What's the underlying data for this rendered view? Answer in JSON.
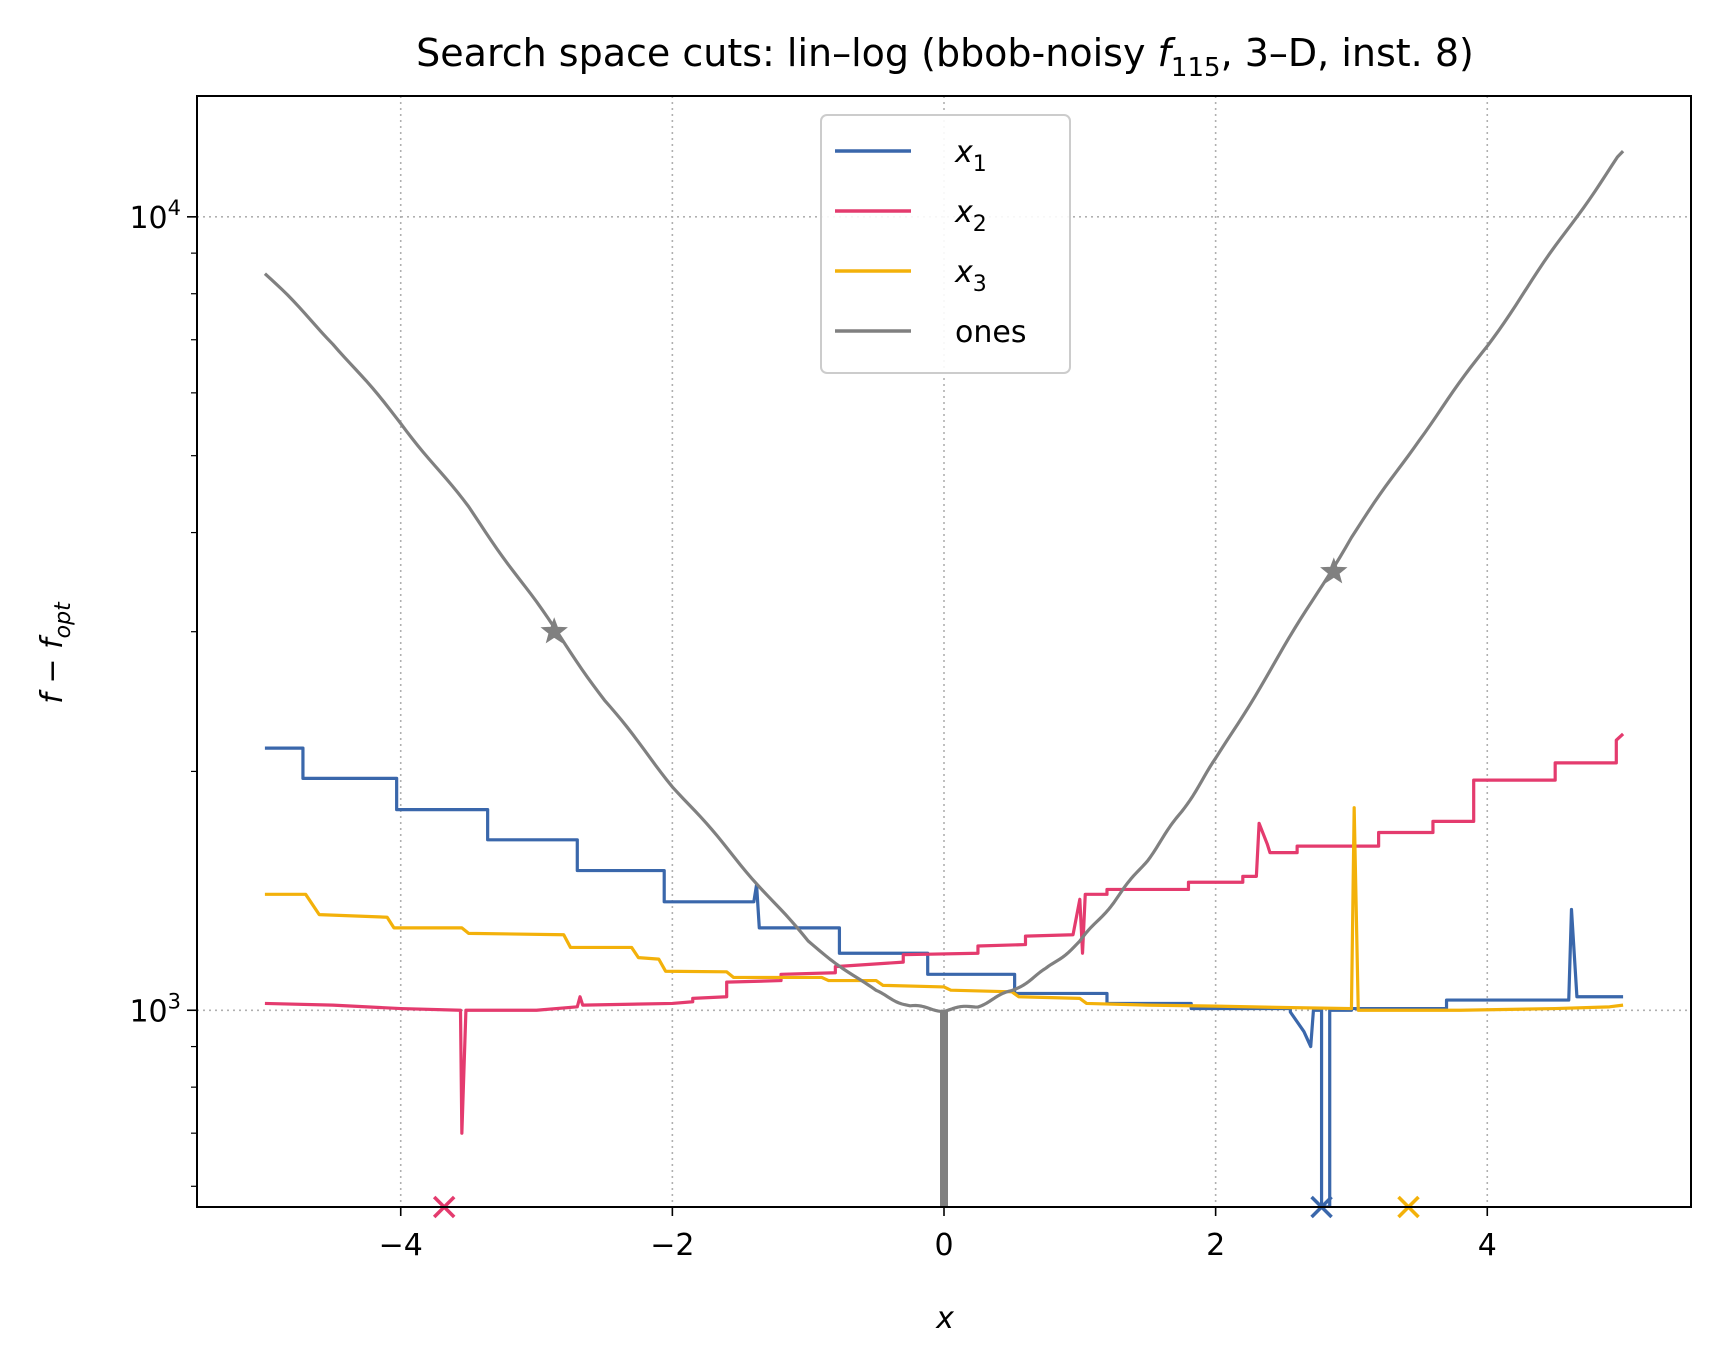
{
  "chart_data": {
    "type": "line",
    "title_main": "Search space cuts: lin–log (bbob-noisy ",
    "title_fn": "f",
    "title_sub": "115",
    "title_rest": ", 3–D, inst. 8)",
    "xlabel": "x",
    "ylabel_base": "f",
    "ylabel_mid": " − ",
    "ylabel_f": "f",
    "ylabel_sub": "opt",
    "xscale": "linear",
    "yscale": "log",
    "xlim": [
      -5.5,
      5.5
    ],
    "ylim": [
      565,
      14200
    ],
    "grid": true,
    "legend_position": "top-center",
    "x_ticks": [
      {
        "value": -4,
        "label": "−4"
      },
      {
        "value": -2,
        "label": "−2"
      },
      {
        "value": 0,
        "label": "0"
      },
      {
        "value": 2,
        "label": "2"
      },
      {
        "value": 4,
        "label": "4"
      }
    ],
    "y_ticks": [
      {
        "value": 1000,
        "base": "10",
        "exp": "3"
      },
      {
        "value": 10000,
        "base": "10",
        "exp": "4"
      }
    ],
    "series": [
      {
        "name": "x",
        "name_sub": "1",
        "color": "#3a67ab",
        "points": [
          [
            -5,
            2140
          ],
          [
            -4.72,
            2140
          ],
          [
            -4.72,
            1960
          ],
          [
            -4.03,
            1960
          ],
          [
            -4.03,
            1790
          ],
          [
            -3.36,
            1790
          ],
          [
            -3.36,
            1640
          ],
          [
            -2.7,
            1640
          ],
          [
            -2.7,
            1500
          ],
          [
            -2.06,
            1500
          ],
          [
            -2.06,
            1370
          ],
          [
            -1.4,
            1370
          ],
          [
            -1.38,
            1440
          ],
          [
            -1.36,
            1270
          ],
          [
            -0.77,
            1270
          ],
          [
            -0.77,
            1180
          ],
          [
            -0.12,
            1180
          ],
          [
            -0.12,
            1110
          ],
          [
            0.52,
            1110
          ],
          [
            0.52,
            1050
          ],
          [
            1.2,
            1050
          ],
          [
            1.2,
            1020
          ],
          [
            1.82,
            1020
          ],
          [
            1.82,
            1005
          ],
          [
            2.55,
            1005
          ],
          [
            2.55,
            995
          ],
          [
            2.65,
            940
          ],
          [
            2.7,
            900
          ],
          [
            2.72,
            1000
          ],
          [
            2.78,
            1000
          ],
          [
            2.78,
            565
          ],
          [
            2.84,
            565
          ],
          [
            2.84,
            1000
          ],
          [
            3.0,
            1000
          ],
          [
            3.0,
            1005
          ],
          [
            3.7,
            1005
          ],
          [
            3.7,
            1030
          ],
          [
            4.45,
            1030
          ],
          [
            4.6,
            1030
          ],
          [
            4.62,
            1340
          ],
          [
            4.66,
            1040
          ],
          [
            5.0,
            1040
          ]
        ]
      },
      {
        "name": "x",
        "name_sub": "2",
        "color": "#e43b6e",
        "points": [
          [
            -5,
            1020
          ],
          [
            -4.5,
            1015
          ],
          [
            -4.0,
            1005
          ],
          [
            -3.56,
            1000
          ],
          [
            -3.55,
            700
          ],
          [
            -3.52,
            1000
          ],
          [
            -3.0,
            1000
          ],
          [
            -2.7,
            1010
          ],
          [
            -2.68,
            1040
          ],
          [
            -2.66,
            1015
          ],
          [
            -2.0,
            1020
          ],
          [
            -1.85,
            1025
          ],
          [
            -1.85,
            1035
          ],
          [
            -1.6,
            1040
          ],
          [
            -1.6,
            1085
          ],
          [
            -1.2,
            1090
          ],
          [
            -1.2,
            1110
          ],
          [
            -0.8,
            1115
          ],
          [
            -0.8,
            1135
          ],
          [
            -0.3,
            1150
          ],
          [
            -0.3,
            1175
          ],
          [
            0.25,
            1180
          ],
          [
            0.25,
            1205
          ],
          [
            0.6,
            1210
          ],
          [
            0.6,
            1240
          ],
          [
            0.95,
            1245
          ],
          [
            1.0,
            1380
          ],
          [
            1.02,
            1180
          ],
          [
            1.04,
            1400
          ],
          [
            1.2,
            1400
          ],
          [
            1.2,
            1420
          ],
          [
            1.8,
            1420
          ],
          [
            1.8,
            1450
          ],
          [
            2.2,
            1450
          ],
          [
            2.2,
            1475
          ],
          [
            2.3,
            1475
          ],
          [
            2.32,
            1720
          ],
          [
            2.38,
            1620
          ],
          [
            2.4,
            1580
          ],
          [
            2.6,
            1580
          ],
          [
            2.6,
            1610
          ],
          [
            3.2,
            1610
          ],
          [
            3.2,
            1675
          ],
          [
            3.6,
            1675
          ],
          [
            3.6,
            1730
          ],
          [
            3.9,
            1730
          ],
          [
            3.9,
            1950
          ],
          [
            4.5,
            1950
          ],
          [
            4.5,
            2050
          ],
          [
            4.95,
            2050
          ],
          [
            4.95,
            2190
          ],
          [
            5.0,
            2230
          ]
        ]
      },
      {
        "name": "x",
        "name_sub": "3",
        "color": "#f3b10a",
        "points": [
          [
            -5,
            1400
          ],
          [
            -4.7,
            1400
          ],
          [
            -4.6,
            1320
          ],
          [
            -4.1,
            1310
          ],
          [
            -4.05,
            1270
          ],
          [
            -3.55,
            1270
          ],
          [
            -3.5,
            1250
          ],
          [
            -2.8,
            1245
          ],
          [
            -2.75,
            1200
          ],
          [
            -2.3,
            1200
          ],
          [
            -2.25,
            1165
          ],
          [
            -2.1,
            1160
          ],
          [
            -2.05,
            1120
          ],
          [
            -1.6,
            1118
          ],
          [
            -1.55,
            1100
          ],
          [
            -0.9,
            1100
          ],
          [
            -0.85,
            1090
          ],
          [
            -0.5,
            1090
          ],
          [
            -0.45,
            1075
          ],
          [
            0.0,
            1070
          ],
          [
            0.05,
            1060
          ],
          [
            0.5,
            1055
          ],
          [
            0.55,
            1040
          ],
          [
            1.0,
            1035
          ],
          [
            1.05,
            1020
          ],
          [
            1.5,
            1015
          ],
          [
            2.0,
            1012
          ],
          [
            2.5,
            1008
          ],
          [
            3.0,
            1005
          ],
          [
            3.02,
            1800
          ],
          [
            3.05,
            1000
          ],
          [
            3.8,
            1000
          ],
          [
            4.5,
            1005
          ],
          [
            4.9,
            1010
          ],
          [
            5.0,
            1015
          ]
        ]
      },
      {
        "name": "ones",
        "color": "#808080",
        "dense": true,
        "points": [
          [
            -5,
            8490
          ],
          [
            -4.5,
            6940
          ],
          [
            -4,
            5500
          ],
          [
            -3.5,
            4300
          ],
          [
            -3,
            3260
          ],
          [
            -2.5,
            2460
          ],
          [
            -2,
            1920
          ],
          [
            -1.5,
            1530
          ],
          [
            -1,
            1220
          ],
          [
            -0.5,
            1055
          ],
          [
            -0.25,
            1012
          ],
          [
            0,
            1000
          ],
          [
            0.25,
            1013
          ],
          [
            0.5,
            1058
          ],
          [
            0.75,
            1125
          ],
          [
            1,
            1220
          ],
          [
            1.25,
            1370
          ],
          [
            1.5,
            1550
          ],
          [
            1.75,
            1780
          ],
          [
            2,
            2070
          ],
          [
            2.5,
            2860
          ],
          [
            3,
            3950
          ],
          [
            3.5,
            5250
          ],
          [
            4,
            6880
          ],
          [
            4.5,
            9160
          ],
          [
            5,
            12150
          ]
        ],
        "spike": {
          "x": 0,
          "from": 1000,
          "to": 565
        }
      }
    ],
    "star_markers": [
      {
        "x": -2.87,
        "y": 3000,
        "color": "#808080"
      },
      {
        "x": 2.87,
        "y": 3570,
        "color": "#808080"
      }
    ],
    "bottom_markers": [
      {
        "x": -3.68,
        "color": "#e43b6e"
      },
      {
        "x": 2.78,
        "color": "#3a67ab"
      },
      {
        "x": 3.42,
        "color": "#f3b10a"
      }
    ]
  }
}
